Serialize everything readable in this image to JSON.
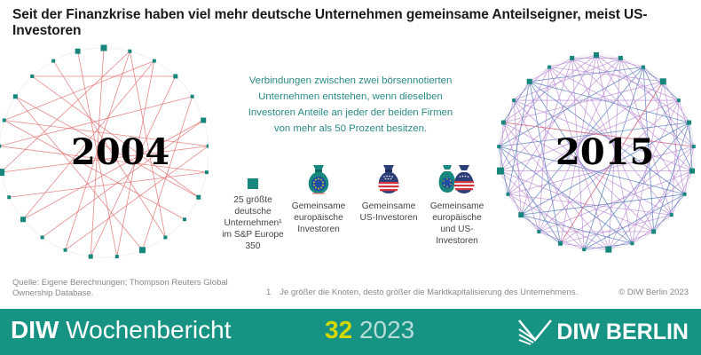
{
  "header": {
    "title": "Seit der Finanzkrise haben viel mehr deutsche Unternehmen gemeinsame Anteilseigner, meist US-Investoren"
  },
  "diagram": {
    "years": {
      "left": "2004",
      "right": "2015"
    },
    "explanation": "Verbindungen zwischen zwei börsennotierten Unternehmen entstehen, wenn dieselben Investoren Anteile an jeder der beiden Firmen von mehr als 50 Prozent besitzen.",
    "legend": [
      {
        "label": "25 größte deutsche Unternehmen¹ im S&P Europe 350",
        "icon": "teal-square-node-icon"
      },
      {
        "label": "Gemeinsame europäische Investoren",
        "icon": "eu-money-bag-icon",
        "line_color": "#e06b6b"
      },
      {
        "label": "Gemeinsame US-Investoren",
        "icon": "us-money-bag-icon",
        "line_color": "#4a77b5"
      },
      {
        "label": "Gemeinsame europäische und US-Investoren",
        "icon": "eu-us-money-bags-icon",
        "line_color": "#b98ad4"
      }
    ],
    "colors": {
      "node": "#17877d",
      "eu_edge": "#e06b6b",
      "us_edge": "#4a77b5",
      "mixed_edge": "#b98ad4"
    }
  },
  "notes": {
    "source": "Quelle: Eigene Berechnungen; Thompson Reuters Global Ownership Database.",
    "footnote_mark": "1",
    "footnote": "Je größer die Knoten, desto größer die Marktkapitalisierung des Unternehmens.",
    "copyright": "© DIW Berlin 2023"
  },
  "footer": {
    "brand_bold": "DIW",
    "brand_rest": " Wochenbericht",
    "issue_number": "32",
    "issue_year": "2023",
    "logo_text": "DIW BERLIN"
  }
}
